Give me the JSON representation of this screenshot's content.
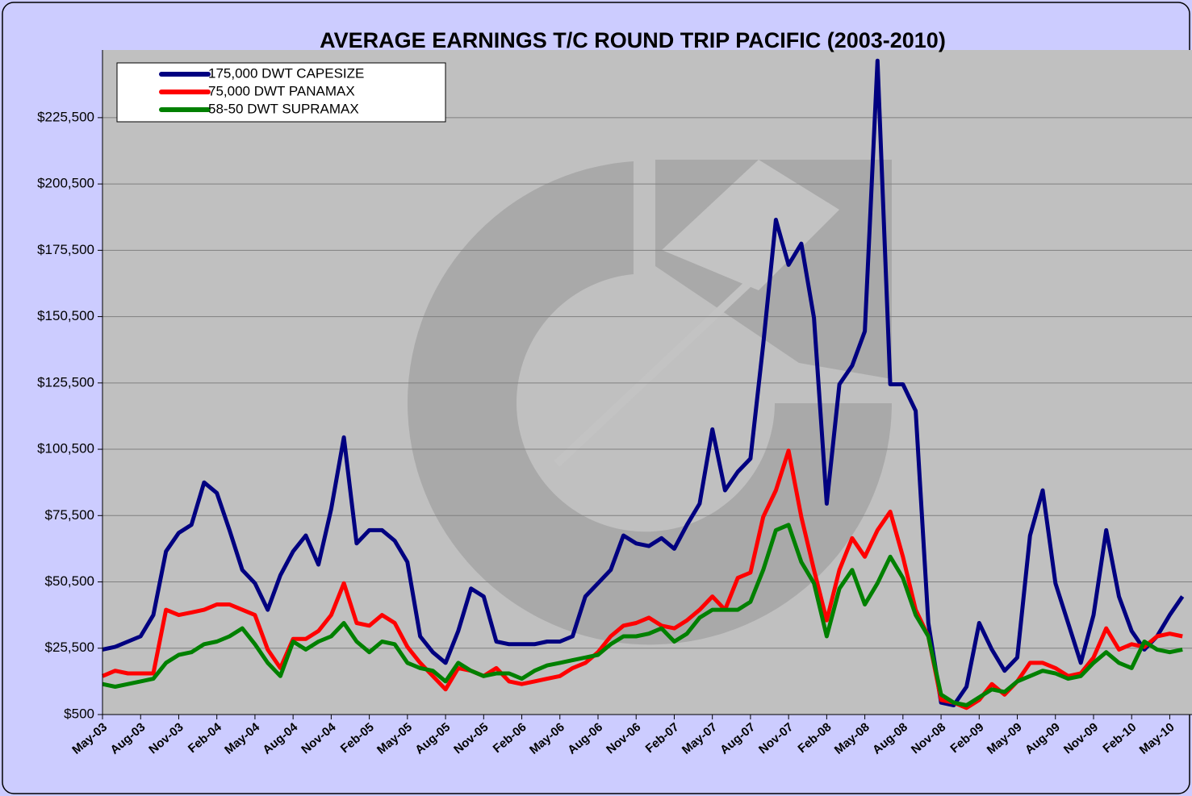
{
  "chart_data": {
    "type": "line",
    "title": "AVERAGE EARNINGS T/C ROUND TRIP PACIFIC (2003-2010)",
    "categories": [
      "May-03",
      null,
      null,
      "Aug-03",
      null,
      null,
      "Nov-03",
      null,
      null,
      "Feb-04",
      null,
      null,
      "May-04",
      null,
      null,
      "Aug-04",
      null,
      null,
      "Nov-04",
      null,
      null,
      "Feb-05",
      null,
      null,
      "May-05",
      null,
      null,
      "Aug-05",
      null,
      null,
      "Nov-05",
      null,
      null,
      "Feb-06",
      null,
      null,
      "May-06",
      null,
      null,
      "Aug-06",
      null,
      null,
      "Nov-06",
      null,
      null,
      "Feb-07",
      null,
      null,
      "May-07",
      null,
      null,
      "Aug-07",
      null,
      null,
      "Nov-07",
      null,
      null,
      "Feb-08",
      null,
      null,
      "May-08",
      null,
      null,
      "Aug-08",
      null,
      null,
      "Nov-08",
      null,
      null,
      "Feb-09",
      null,
      null,
      "May-09",
      null,
      null,
      "Aug-09",
      null,
      null,
      "Nov-09",
      null,
      null,
      "Feb-10",
      null,
      null,
      "May-10",
      null
    ],
    "series": [
      {
        "name": "175,000 DWT CAPESIZE",
        "color": "#000080",
        "values": [
          25000,
          26000,
          28000,
          30000,
          38000,
          62000,
          69000,
          72000,
          88000,
          84000,
          70000,
          55000,
          50000,
          40000,
          53000,
          62000,
          68000,
          57000,
          78000,
          105000,
          65000,
          70000,
          70000,
          66000,
          58000,
          30000,
          24000,
          20000,
          32000,
          48000,
          45000,
          28000,
          27000,
          27000,
          27000,
          28000,
          28000,
          30000,
          45000,
          50000,
          55000,
          68000,
          65000,
          64000,
          67000,
          63000,
          72000,
          80000,
          108000,
          85000,
          92000,
          97000,
          140000,
          187000,
          170000,
          178000,
          150000,
          80000,
          125000,
          132000,
          145000,
          247000,
          125000,
          125000,
          115000,
          35000,
          5000,
          4000,
          11000,
          35000,
          25000,
          17000,
          22000,
          68000,
          85000,
          50000,
          35000,
          20000,
          38000,
          70000,
          45000,
          32000,
          25000,
          30000,
          38000,
          45000
        ]
      },
      {
        "name": "75,000 DWT PANAMAX",
        "color": "#ff0000",
        "values": [
          15000,
          17000,
          16000,
          16000,
          16000,
          40000,
          38000,
          39000,
          40000,
          42000,
          42000,
          40000,
          38000,
          25000,
          18000,
          29000,
          29000,
          32000,
          38000,
          50000,
          35000,
          34000,
          38000,
          35000,
          26000,
          20000,
          15000,
          10000,
          18000,
          17000,
          15000,
          18000,
          13000,
          12000,
          13000,
          14000,
          15000,
          18000,
          20000,
          24000,
          30000,
          34000,
          35000,
          37000,
          34000,
          33000,
          36000,
          40000,
          45000,
          40000,
          52000,
          54000,
          75000,
          85000,
          100000,
          75000,
          55000,
          36000,
          55000,
          67000,
          60000,
          70000,
          77000,
          60000,
          40000,
          30000,
          6000,
          5000,
          3000,
          6000,
          12000,
          8000,
          13000,
          20000,
          20000,
          18000,
          15000,
          16000,
          22000,
          33000,
          25000,
          27000,
          26000,
          30000,
          31000,
          30000
        ]
      },
      {
        "name": "58-50 DWT SUPRAMAX",
        "color": "#008000",
        "values": [
          12000,
          11000,
          12000,
          13000,
          14000,
          20000,
          23000,
          24000,
          27000,
          28000,
          30000,
          33000,
          27000,
          20000,
          15000,
          28000,
          25000,
          28000,
          30000,
          35000,
          28000,
          24000,
          28000,
          27000,
          20000,
          18000,
          17000,
          13000,
          20000,
          17000,
          15000,
          16000,
          16000,
          14000,
          17000,
          19000,
          20000,
          21000,
          22000,
          23000,
          27000,
          30000,
          30000,
          31000,
          33000,
          28000,
          31000,
          37000,
          40000,
          40000,
          40000,
          43000,
          55000,
          70000,
          72000,
          58000,
          50000,
          30000,
          48000,
          55000,
          42000,
          50000,
          60000,
          52000,
          38000,
          30000,
          8000,
          5000,
          4000,
          7000,
          10000,
          9000,
          13000,
          15000,
          17000,
          16000,
          14000,
          15000,
          20000,
          24000,
          20000,
          18000,
          28000,
          25000,
          24000,
          25000
        ]
      }
    ],
    "ylim": [
      500,
      251000
    ],
    "yticks": [
      {
        "value": 500,
        "label": "$500"
      },
      {
        "value": 25500,
        "label": "$25,500"
      },
      {
        "value": 50500,
        "label": "$50,500"
      },
      {
        "value": 75500,
        "label": "$75,500"
      },
      {
        "value": 100500,
        "label": "$100,500"
      },
      {
        "value": 125500,
        "label": "$125,500"
      },
      {
        "value": 150500,
        "label": "$150,500"
      },
      {
        "value": 175500,
        "label": "$175,500"
      },
      {
        "value": 200500,
        "label": "$200,500"
      },
      {
        "value": 225500,
        "label": "$225,500"
      }
    ],
    "grid": true,
    "legend": "top-left"
  }
}
